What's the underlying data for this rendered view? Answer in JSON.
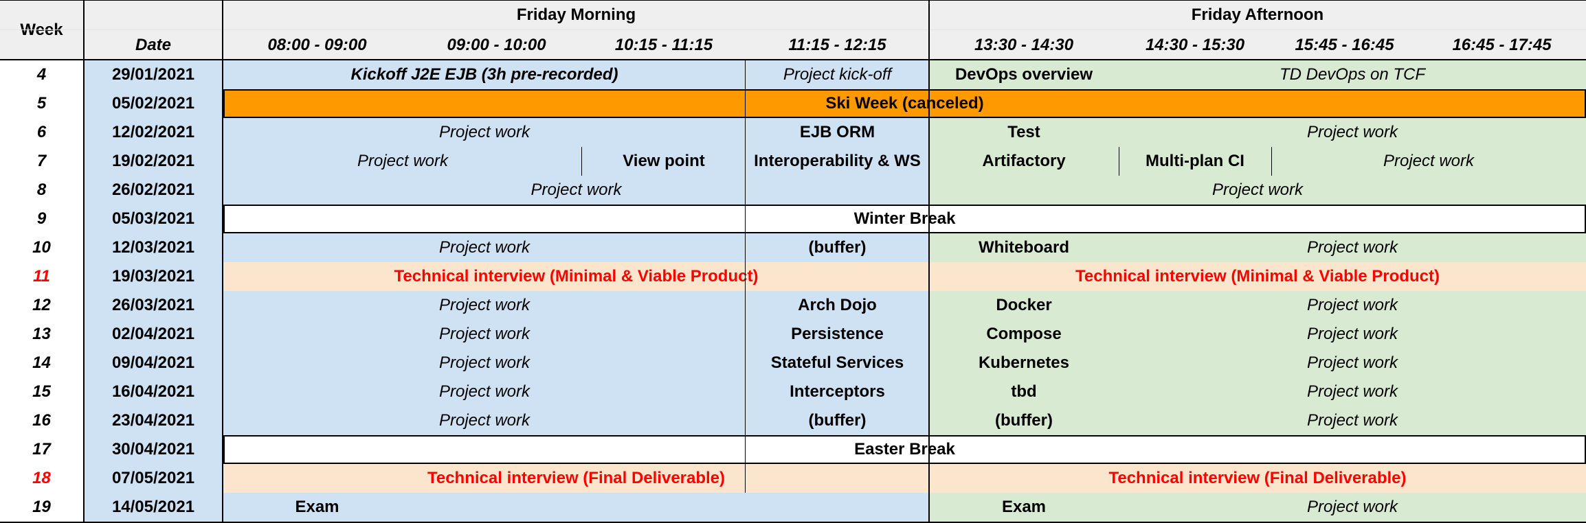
{
  "header": {
    "week_label": "Week",
    "date_label": "Date",
    "morning_label": "Friday Morning",
    "afternoon_label": "Friday Afternoon",
    "slots": [
      "08:00 - 09:00",
      "09:00 - 10:00",
      "10:15 - 11:15",
      "11:15 - 12:15",
      "13:30 - 14:30",
      "14:30 - 15:30",
      "15:45 - 16:45",
      "16:45 - 17:45"
    ]
  },
  "colors": {
    "morning_fill": "#cfe2f3",
    "afternoon_fill": "#d9ead3",
    "interview_fill": "#fce5cd",
    "ski_week_fill": "#ff9900",
    "header_fill": "#efefef",
    "interview_text": "#ff0000"
  },
  "rows": [
    {
      "week": "4",
      "date": "29/01/2021",
      "cells": [
        {
          "text": "Kickoff J2E EJB (3h pre-recorded)",
          "span": [
            0,
            3
          ],
          "fill": "morning",
          "bold": true,
          "italic": true
        },
        {
          "text": "Project kick-off",
          "span": [
            3,
            4
          ],
          "fill": "morning",
          "italic": true
        },
        {
          "text": "DevOps overview",
          "span": [
            4,
            5
          ],
          "fill": "afternoon",
          "bold": true
        },
        {
          "text": "TD DevOps on TCF",
          "span": [
            5,
            8
          ],
          "fill": "afternoon",
          "italic": true
        }
      ]
    },
    {
      "week": "5",
      "date": "05/02/2021",
      "cells": [
        {
          "text": "Ski Week (canceled)",
          "span": [
            0,
            8
          ],
          "fill": "ski",
          "bold": true
        }
      ]
    },
    {
      "week": "6",
      "date": "12/02/2021",
      "cells": [
        {
          "text": "Project work",
          "span": [
            0,
            3
          ],
          "fill": "morning",
          "italic": true
        },
        {
          "text": "EJB ORM",
          "span": [
            3,
            4
          ],
          "fill": "morning",
          "bold": true
        },
        {
          "text": "Test",
          "span": [
            4,
            5
          ],
          "fill": "afternoon",
          "bold": true
        },
        {
          "text": "Project work",
          "span": [
            5,
            8
          ],
          "fill": "afternoon",
          "italic": true
        }
      ]
    },
    {
      "week": "7",
      "date": "19/02/2021",
      "cells": [
        {
          "text": "Project work",
          "span": [
            0,
            2
          ],
          "fill": "morning",
          "italic": true
        },
        {
          "text": "View point",
          "span": [
            2,
            3
          ],
          "fill": "morning",
          "bold": true
        },
        {
          "text": "Interoperability & WS",
          "span": [
            3,
            4
          ],
          "fill": "morning",
          "bold": true
        },
        {
          "text": "Artifactory",
          "span": [
            4,
            5
          ],
          "fill": "afternoon",
          "bold": true
        },
        {
          "text": "Multi-plan CI",
          "span": [
            5,
            6
          ],
          "fill": "afternoon",
          "bold": true
        },
        {
          "text": "Project work",
          "span": [
            6,
            8
          ],
          "fill": "afternoon",
          "italic": true
        }
      ]
    },
    {
      "week": "8",
      "date": "26/02/2021",
      "cells": [
        {
          "text": "Project work",
          "span": [
            0,
            4
          ],
          "fill": "morning",
          "italic": true
        },
        {
          "text": "Project work",
          "span": [
            4,
            8
          ],
          "fill": "afternoon",
          "italic": true
        }
      ]
    },
    {
      "week": "9",
      "date": "05/03/2021",
      "cells": [
        {
          "text": "Winter Break",
          "span": [
            0,
            8
          ],
          "fill": "white",
          "bold": true
        }
      ]
    },
    {
      "week": "10",
      "date": "12/03/2021",
      "cells": [
        {
          "text": "Project work",
          "span": [
            0,
            3
          ],
          "fill": "morning",
          "italic": true
        },
        {
          "text": "(buffer)",
          "span": [
            3,
            4
          ],
          "fill": "morning",
          "bold": true
        },
        {
          "text": "Whiteboard",
          "span": [
            4,
            5
          ],
          "fill": "afternoon",
          "bold": true
        },
        {
          "text": "Project work",
          "span": [
            5,
            8
          ],
          "fill": "afternoon",
          "italic": true
        }
      ]
    },
    {
      "week": "11",
      "date": "19/03/2021",
      "highlight": true,
      "cells": [
        {
          "text": "Technical interview (Minimal & Viable Product)",
          "span": [
            0,
            4
          ],
          "fill": "interview",
          "bold": true,
          "red": true
        },
        {
          "text": "Technical interview (Minimal & Viable Product)",
          "span": [
            4,
            8
          ],
          "fill": "interview",
          "bold": true,
          "red": true
        }
      ]
    },
    {
      "week": "12",
      "date": "26/03/2021",
      "cells": [
        {
          "text": "Project work",
          "span": [
            0,
            3
          ],
          "fill": "morning",
          "italic": true
        },
        {
          "text": "Arch Dojo",
          "span": [
            3,
            4
          ],
          "fill": "morning",
          "bold": true
        },
        {
          "text": "Docker",
          "span": [
            4,
            5
          ],
          "fill": "afternoon",
          "bold": true
        },
        {
          "text": "Project work",
          "span": [
            5,
            8
          ],
          "fill": "afternoon",
          "italic": true
        }
      ]
    },
    {
      "week": "13",
      "date": "02/04/2021",
      "cells": [
        {
          "text": "Project work",
          "span": [
            0,
            3
          ],
          "fill": "morning",
          "italic": true
        },
        {
          "text": "Persistence",
          "span": [
            3,
            4
          ],
          "fill": "morning",
          "bold": true
        },
        {
          "text": "Compose",
          "span": [
            4,
            5
          ],
          "fill": "afternoon",
          "bold": true
        },
        {
          "text": "Project work",
          "span": [
            5,
            8
          ],
          "fill": "afternoon",
          "italic": true
        }
      ]
    },
    {
      "week": "14",
      "date": "09/04/2021",
      "cells": [
        {
          "text": "Project work",
          "span": [
            0,
            3
          ],
          "fill": "morning",
          "italic": true
        },
        {
          "text": "Stateful Services",
          "span": [
            3,
            4
          ],
          "fill": "morning",
          "bold": true
        },
        {
          "text": "Kubernetes",
          "span": [
            4,
            5
          ],
          "fill": "afternoon",
          "bold": true
        },
        {
          "text": "Project work",
          "span": [
            5,
            8
          ],
          "fill": "afternoon",
          "italic": true
        }
      ]
    },
    {
      "week": "15",
      "date": "16/04/2021",
      "cells": [
        {
          "text": "Project work",
          "span": [
            0,
            3
          ],
          "fill": "morning",
          "italic": true
        },
        {
          "text": "Interceptors",
          "span": [
            3,
            4
          ],
          "fill": "morning",
          "bold": true
        },
        {
          "text": "tbd",
          "span": [
            4,
            5
          ],
          "fill": "afternoon",
          "bold": true
        },
        {
          "text": "Project work",
          "span": [
            5,
            8
          ],
          "fill": "afternoon",
          "italic": true
        }
      ]
    },
    {
      "week": "16",
      "date": "23/04/2021",
      "cells": [
        {
          "text": "Project work",
          "span": [
            0,
            3
          ],
          "fill": "morning",
          "italic": true
        },
        {
          "text": "(buffer)",
          "span": [
            3,
            4
          ],
          "fill": "morning",
          "bold": true
        },
        {
          "text": "(buffer)",
          "span": [
            4,
            5
          ],
          "fill": "afternoon",
          "bold": true
        },
        {
          "text": "Project work",
          "span": [
            5,
            8
          ],
          "fill": "afternoon",
          "italic": true
        }
      ]
    },
    {
      "week": "17",
      "date": "30/04/2021",
      "cells": [
        {
          "text": "Easter Break",
          "span": [
            0,
            8
          ],
          "fill": "white",
          "bold": true
        }
      ]
    },
    {
      "week": "18",
      "date": "07/05/2021",
      "highlight": true,
      "cells": [
        {
          "text": "Technical interview (Final Deliverable)",
          "span": [
            0,
            4
          ],
          "fill": "interview",
          "bold": true,
          "red": true
        },
        {
          "text": "Technical interview (Final Deliverable)",
          "span": [
            4,
            8
          ],
          "fill": "interview",
          "bold": true,
          "red": true
        }
      ]
    },
    {
      "week": "19",
      "date": "14/05/2021",
      "cells": [
        {
          "text": "Exam",
          "span": [
            0,
            1
          ],
          "fill": "morning",
          "bold": true
        },
        {
          "text": "",
          "span": [
            1,
            4
          ],
          "fill": "morning"
        },
        {
          "text": "Exam",
          "span": [
            4,
            5
          ],
          "fill": "afternoon",
          "bold": true
        },
        {
          "text": "Project work",
          "span": [
            5,
            8
          ],
          "fill": "afternoon",
          "italic": true
        }
      ]
    }
  ]
}
